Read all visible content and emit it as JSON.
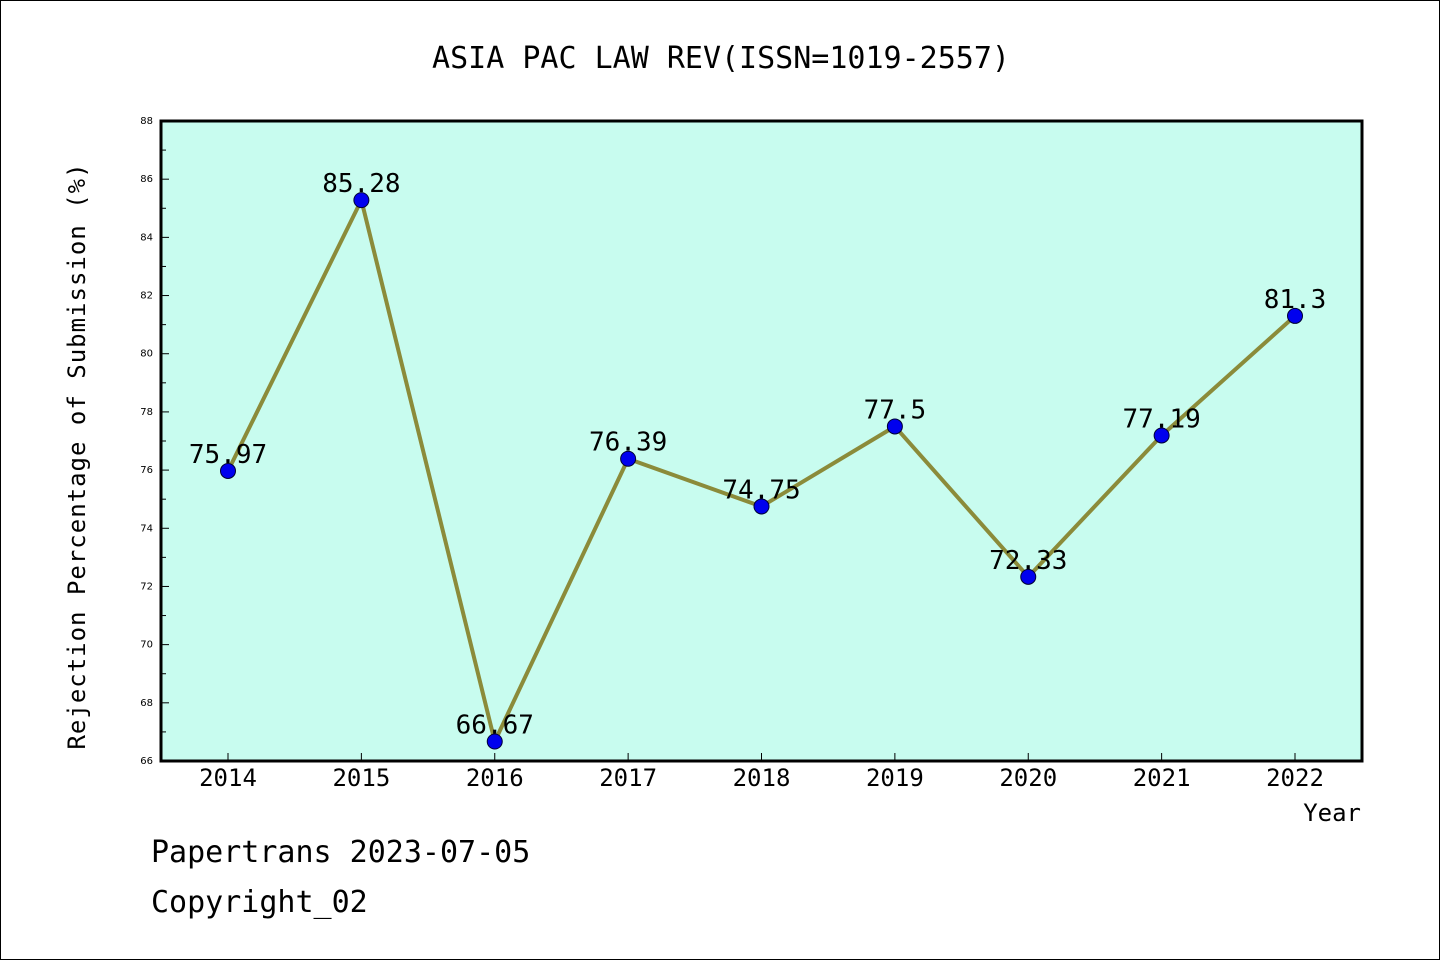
{
  "chart_data": {
    "type": "line",
    "title": "ASIA PAC LAW REV(ISSN=1019-2557)",
    "xlabel": "Year",
    "ylabel": "Rejection Percentage of Submission (%)",
    "categories": [
      "2014",
      "2015",
      "2016",
      "2017",
      "2018",
      "2019",
      "2020",
      "2021",
      "2022"
    ],
    "series": [
      {
        "values": [
          75.97,
          85.28,
          66.67,
          76.39,
          74.75,
          77.5,
          72.33,
          77.19,
          81.3
        ],
        "labels": [
          "75.97",
          "85.28",
          "66.67",
          "76.39",
          "74.75",
          "77.5",
          "72.33",
          "77.19",
          "81.3"
        ]
      }
    ],
    "ylim": [
      66,
      88
    ],
    "yticks": [
      "66",
      "68",
      "70",
      "72",
      "74",
      "76",
      "78",
      "80",
      "82",
      "84",
      "86",
      "88"
    ],
    "grid": false,
    "legend": "none",
    "colors": {
      "plot_background": "#c8fcef",
      "line": "#8b8b3a",
      "marker": "#0000ee"
    }
  },
  "footer": {
    "line1": "Papertrans 2023-07-05",
    "line2": "Copyright_02"
  }
}
